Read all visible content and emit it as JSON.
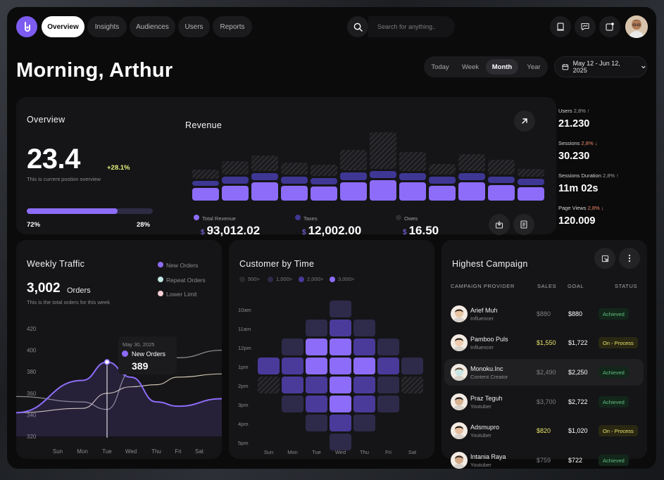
{
  "nav": {
    "tabs": [
      {
        "label": "Overview",
        "active": true
      },
      {
        "label": "Insights",
        "active": false
      },
      {
        "label": "Audiences",
        "active": false
      },
      {
        "label": "Users",
        "active": false
      },
      {
        "label": "Reports",
        "active": false
      }
    ],
    "search_placeholder": "Search for anything.."
  },
  "greeting": "Morning, Arthur",
  "period": {
    "options": [
      "Today",
      "Week",
      "Month",
      "Year"
    ],
    "selected": "Month"
  },
  "date_range": "May 12 - Jun 12, 2025",
  "overview": {
    "title": "Overview",
    "value": "23.4",
    "change": "+28.1%",
    "caption": "This is current postion overview",
    "progress_fraction": 0.72,
    "left_pct": "72%",
    "right_pct": "28%"
  },
  "revenue": {
    "title": "Revenue",
    "items": [
      {
        "label": "Total Revenue",
        "currency": "$",
        "value": "93,012.02"
      },
      {
        "label": "Taxes",
        "currency": "$",
        "value": "12,002.00"
      },
      {
        "label": "Owes",
        "currency": "$",
        "value": "16.50"
      }
    ],
    "bars": [
      {
        "a": 0.27,
        "b": 0.22,
        "c": 0.38
      },
      {
        "a": 0.43,
        "b": 0.3,
        "c": 0.4
      },
      {
        "a": 0.55,
        "b": 0.3,
        "c": 0.55
      },
      {
        "a": 0.41,
        "b": 0.32,
        "c": 0.42
      },
      {
        "a": 0.37,
        "b": 0.28,
        "c": 0.43
      },
      {
        "a": 0.65,
        "b": 0.33,
        "c": 0.45
      },
      {
        "a": 1.0,
        "b": 0.3,
        "c": 0.38
      },
      {
        "a": 0.62,
        "b": 0.3,
        "c": 0.48
      },
      {
        "a": 0.38,
        "b": 0.3,
        "c": 0.44
      },
      {
        "a": 0.57,
        "b": 0.32,
        "c": 0.53
      },
      {
        "a": 0.47,
        "b": 0.28,
        "c": 0.45
      },
      {
        "a": 0.29,
        "b": 0.28,
        "c": 0.4
      },
      {
        "a": 0.54,
        "b": 0.27,
        "c": 0.36
      }
    ]
  },
  "stats": [
    {
      "label": "Users",
      "change": "2,8%",
      "dir": "up",
      "value": "21.230"
    },
    {
      "label": "Sessions",
      "change": "2,8%",
      "dir": "down",
      "value": "30.230"
    },
    {
      "label": "Sessions Duration",
      "change": "2,8%",
      "dir": "up",
      "value": "11m 02s"
    },
    {
      "label": "Page Views",
      "change": "2,8%",
      "dir": "down",
      "value": "120.009"
    }
  ],
  "weekly_traffic": {
    "title": "Weekly Traffic",
    "orders_value": "3,002",
    "orders_unit": "Orders",
    "caption": "This is the total orders for this week",
    "legend": [
      {
        "name": "New Orders",
        "color": "#8d6cf9"
      },
      {
        "name": "Repeat Orders",
        "color": "#bfe8e3"
      },
      {
        "name": "Lower Limit",
        "color": "#f5d0d6"
      }
    ],
    "tooltip": {
      "date": "May 30, 2025",
      "label": "New Orders",
      "value": "389"
    }
  },
  "customer_by_time": {
    "title": "Customer by Time",
    "legend": [
      {
        "label": "500>",
        "color": "#2a2a2e"
      },
      {
        "label": "1,000>",
        "color": "#2e2a4a"
      },
      {
        "label": "2,000>",
        "color": "#4a3a9a"
      },
      {
        "label": "3,000>",
        "color": "#8d6cf9"
      }
    ]
  },
  "chart_data": [
    {
      "type": "line",
      "title": "Weekly Traffic",
      "categories": [
        "Sun",
        "Mon",
        "Tue",
        "Wed",
        "Thu",
        "Fri",
        "Sat"
      ],
      "ylim": [
        320,
        420
      ],
      "yticks": [
        420,
        400,
        380,
        360,
        340,
        320
      ],
      "series": [
        {
          "name": "New Orders",
          "color": "#8d6cf9",
          "values": [
            342,
            372,
            389,
            375,
            352,
            348,
            355
          ]
        },
        {
          "name": "Repeat Orders",
          "color": "#9a9aa0",
          "values": [
            357,
            352,
            345,
            380,
            398,
            393,
            400
          ]
        },
        {
          "name": "Lower Limit",
          "color": "#d9d0b8",
          "values": [
            342,
            346,
            360,
            366,
            368,
            375,
            378
          ]
        }
      ],
      "grid": false
    },
    {
      "type": "heatmap",
      "title": "Customer by Time",
      "x": [
        "Sun",
        "Mon",
        "Tue",
        "Wed",
        "Thu",
        "Fri",
        "Sat"
      ],
      "y": [
        "10am",
        "11am",
        "12pm",
        "1pm",
        "2pm",
        "3pm",
        "4pm",
        "5pm"
      ],
      "levels": [
        [
          0,
          0,
          0,
          1,
          0,
          0,
          0
        ],
        [
          0,
          0,
          1,
          2,
          1,
          0,
          0
        ],
        [
          0,
          1,
          3,
          3,
          2,
          1,
          0
        ],
        [
          2,
          2,
          3,
          3,
          3,
          2,
          1
        ],
        [
          0,
          2,
          2,
          3,
          2,
          1,
          0
        ],
        [
          0,
          1,
          2,
          3,
          2,
          1,
          0
        ],
        [
          0,
          0,
          1,
          2,
          1,
          0,
          0
        ],
        [
          0,
          0,
          0,
          1,
          0,
          0,
          0
        ]
      ]
    }
  ],
  "campaign": {
    "title": "Highest Campaign",
    "headers": [
      "CAMPAIGN PROVIDER",
      "SALES",
      "GOAL",
      "STATUS"
    ],
    "rows": [
      {
        "name": "Arief Muh",
        "role": "Influencer",
        "sales": "$880",
        "goal": "$880",
        "status": "Achieved",
        "highlight": false,
        "sales_yellow": false
      },
      {
        "name": "Pamboo Puls",
        "role": "Influencer",
        "sales": "$1,550",
        "goal": "$1,722",
        "status": "On - Process",
        "highlight": false,
        "sales_yellow": true
      },
      {
        "name": "Monoku.Inc",
        "role": "Content Creator",
        "sales": "$2,490",
        "goal": "$2,250",
        "status": "Achieved",
        "highlight": true,
        "sales_yellow": false
      },
      {
        "name": "Praz Teguh",
        "role": "Youtuber",
        "sales": "$3,700",
        "goal": "$2,722",
        "status": "Achieved",
        "highlight": false,
        "sales_yellow": false
      },
      {
        "name": "Adsmupro",
        "role": "Youtuber",
        "sales": "$820",
        "goal": "$1,020",
        "status": "On - Process",
        "highlight": false,
        "sales_yellow": true
      },
      {
        "name": "Intania Raya",
        "role": "Youtuber",
        "sales": "$759",
        "goal": "$722",
        "status": "Achieved",
        "highlight": false,
        "sales_yellow": false
      }
    ]
  },
  "colors": {
    "accent": "#8d6cf9",
    "positive": "#e4f07a",
    "negative": "#f08a6a",
    "achieved": "#5fc080",
    "process": "#e8e36a"
  }
}
